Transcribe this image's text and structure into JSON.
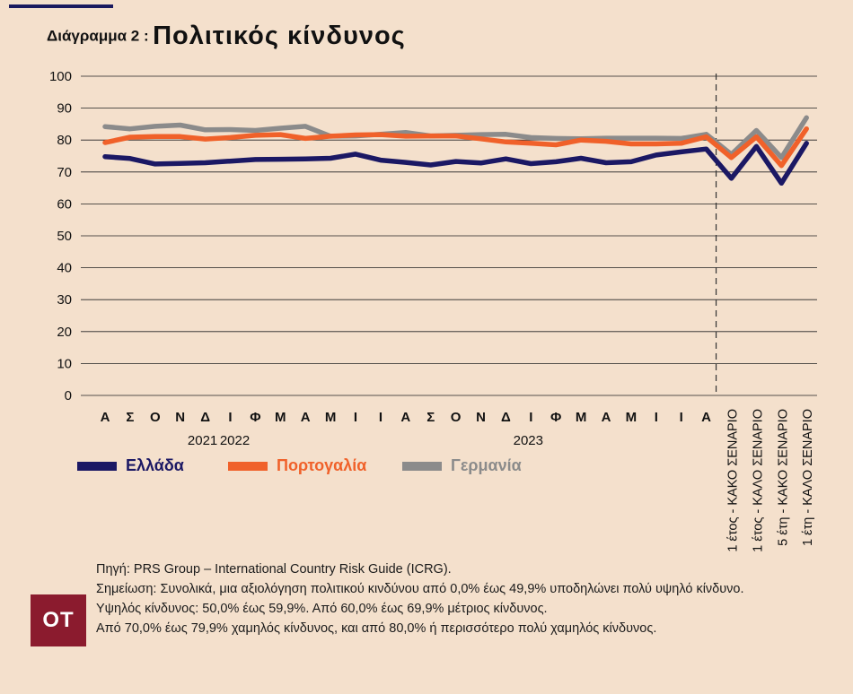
{
  "title": {
    "prefix": "Διάγραμμα 2 :",
    "main": "Πολιτικός κίνδυνος"
  },
  "chart_data": {
    "type": "line",
    "ylim": [
      0,
      100
    ],
    "yticks": [
      0,
      10,
      20,
      30,
      40,
      50,
      60,
      70,
      80,
      90,
      100
    ],
    "grid": true,
    "categories": [
      "Α",
      "Σ",
      "Ο",
      "Ν",
      "Δ",
      "Ι",
      "Φ",
      "Μ",
      "Α",
      "Μ",
      "Ι",
      "Ι",
      "Α",
      "Σ",
      "Ο",
      "Ν",
      "Δ",
      "Ι",
      "Φ",
      "Μ",
      "Α",
      "Μ",
      "Ι",
      "Ι",
      "Α",
      "1 έτος - ΚΑΚΟ ΣΕΝΑΡΙΟ",
      "1 έτος - ΚΑΛΟ ΣΕΝΑΡΙΟ",
      "5 έτη - ΚΑΚΟ ΣΕΝΑΡΙΟ",
      "1 έτη - ΚΑΛΟ ΣΕΝΑΡΙΟ"
    ],
    "year_labels": [
      {
        "label": "2021",
        "index": 4
      },
      {
        "label": "2022",
        "index": 5
      },
      {
        "label": "2023",
        "index": 17
      }
    ],
    "divider_after_index": 24,
    "series": [
      {
        "name": "Ελλάδα",
        "color": "#1b1864",
        "values": [
          74.8,
          74.2,
          72.5,
          72.7,
          72.9,
          73.4,
          73.9,
          74.0,
          74.1,
          74.3,
          75.6,
          73.7,
          73.0,
          72.2,
          73.3,
          72.8,
          74.1,
          72.6,
          73.2,
          74.3,
          72.9,
          73.2,
          75.3,
          76.3,
          77.2,
          68.0,
          78.0,
          66.5,
          79.0
        ]
      },
      {
        "name": "Πορτογαλία",
        "color": "#f0612a",
        "values": [
          79.2,
          80.9,
          81.1,
          81.1,
          80.3,
          80.8,
          81.5,
          81.7,
          80.5,
          81.2,
          81.6,
          81.7,
          81.2,
          81.3,
          81.3,
          80.4,
          79.4,
          79.0,
          78.5,
          80.0,
          79.6,
          78.8,
          78.8,
          79.0,
          81.0,
          74.5,
          81.0,
          72.0,
          83.5
        ]
      },
      {
        "name": "Γερμανία",
        "color": "#8b8b8b",
        "values": [
          84.2,
          83.5,
          84.3,
          84.7,
          83.2,
          83.3,
          83.0,
          83.7,
          84.3,
          81.2,
          81.3,
          81.8,
          82.4,
          81.3,
          81.5,
          81.7,
          81.8,
          80.8,
          80.5,
          80.4,
          80.6,
          80.6,
          80.6,
          80.5,
          81.8,
          75.5,
          83.0,
          74.5,
          87.0
        ]
      }
    ]
  },
  "notes": [
    "Πηγή: PRS Group – International Country Risk Guide (ICRG).",
    "Σημείωση: Συνολικά, μια αξιολόγηση πολιτικού κινδύνου από 0,0% έως 49,9% υποδηλώνει πολύ υψηλό κίνδυνο.",
    "Υψηλός κίνδυνος: 50,0% έως 59,9%. Από 60,0% έως 69,9% μέτριος κίνδυνος.",
    "Από 70,0% έως 79,9% χαμηλός κίνδυνος, και από 80,0% ή περισσότερο πολύ χαμηλός κίνδυνος."
  ],
  "logo": "ΟΤ"
}
